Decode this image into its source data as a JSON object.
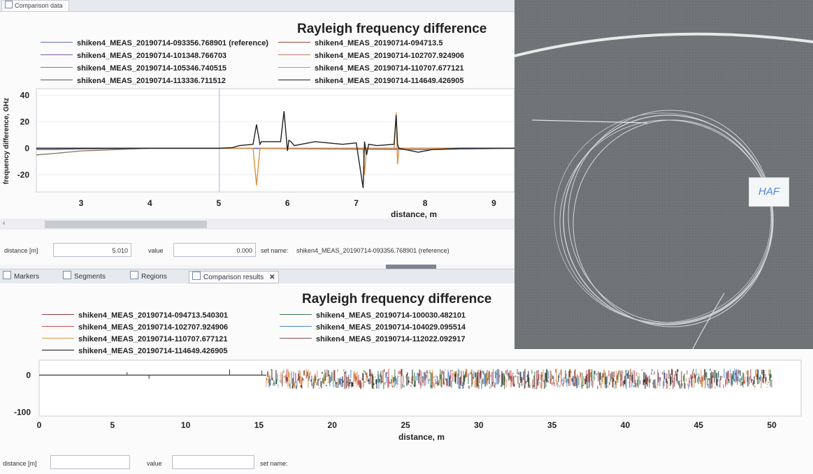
{
  "top_panel": {
    "tab_label": "Comparison data",
    "title": "Rayleigh frequency difference",
    "legend": [
      {
        "label": "shiken4_MEAS_20190714-093356.768901 (reference)",
        "color": "#5f6fb8"
      },
      {
        "label": "shiken4_MEAS_20190714-094713.5",
        "color": "#9a4a3a"
      },
      {
        "label": "shiken4_MEAS_20190714-101348.766703",
        "color": "#7c5aa8"
      },
      {
        "label": "shiken4_MEAS_20190714-102707.924906",
        "color": "#c8756a"
      },
      {
        "label": "shiken4_MEAS_20190714-105346.740515",
        "color": "#8a7a6a"
      },
      {
        "label": "shiken4_MEAS_20190714-110707.677121",
        "color": "#e09040"
      },
      {
        "label": "shiken4_MEAS_20190714-113336.711512",
        "color": "#555555"
      },
      {
        "label": "shiken4_MEAS_20190714-114649.426905",
        "color": "#222222"
      }
    ],
    "ylabel": "frequency difference, GHz",
    "xlabel": "distance, m",
    "form": {
      "distance_label": "distance [m]",
      "distance_value": "5.010",
      "value_label": "value",
      "value_value": "0.000",
      "setname_label": "set name:",
      "setname_value": "shiken4_MEAS_20190714-093356.768901 (reference)"
    }
  },
  "bottom_tabs": [
    {
      "label": "Markers",
      "icon": "markers-icon",
      "active": false
    },
    {
      "label": "Segments",
      "icon": "segments-icon",
      "active": false
    },
    {
      "label": "Regions",
      "icon": "regions-icon",
      "active": false
    },
    {
      "label": "Comparison results",
      "icon": "chart-icon",
      "active": true,
      "close": "✕"
    }
  ],
  "bottom_panel": {
    "title": "Rayleigh frequency difference",
    "legend": [
      {
        "label": "shiken4_MEAS_20190714-094713.540301",
        "color": "#8b3a3a"
      },
      {
        "label": "shiken4_MEAS_20190714-100030.482101",
        "color": "#3a7a4a"
      },
      {
        "label": "shiken4_MEAS_20190714-102707.924906",
        "color": "#c05050"
      },
      {
        "label": "shiken4_MEAS_20190714-104029.095514",
        "color": "#4a8ad0"
      },
      {
        "label": "shiken4_MEAS_20190714-110707.677121",
        "color": "#e09040"
      },
      {
        "label": "shiken4_MEAS_20190714-112022.092917",
        "color": "#8a4a4a"
      },
      {
        "label": "shiken4_MEAS_20190714-114649.426905",
        "color": "#111111"
      }
    ],
    "xlabel": "distance, m",
    "form": {
      "distance_label": "distance [m]",
      "value_label": "value",
      "setname_label": "set name:"
    }
  },
  "photo": {
    "tag_text": "HAF"
  },
  "chart_data": [
    {
      "type": "line",
      "title": "Rayleigh frequency difference",
      "xlabel": "distance, m",
      "ylabel": "frequency difference, GHz",
      "xlim": [
        2.35,
        9.3
      ],
      "ylim": [
        -33,
        45
      ],
      "xticks": [
        3,
        4,
        5,
        6,
        7,
        8,
        9
      ],
      "yticks": [
        40,
        20,
        0,
        -20
      ],
      "marker_x": 5.01,
      "series": [
        {
          "name": "shiken4_MEAS_20190714-114649.426905",
          "color": "#222222",
          "x": [
            2.35,
            3.0,
            4.0,
            5.0,
            5.2,
            5.3,
            5.5,
            5.55,
            5.6,
            5.62,
            5.9,
            5.95,
            6.0,
            6.02,
            6.05,
            6.1,
            6.3,
            6.4,
            6.8,
            7.0,
            7.1,
            7.12,
            7.15,
            7.18,
            7.3,
            7.55,
            7.58,
            7.6,
            7.62,
            7.9,
            8.1,
            8.5,
            9.3
          ],
          "y": [
            0,
            0,
            0,
            0,
            0.5,
            2,
            3,
            18,
            3,
            5,
            5,
            28,
            -2,
            6,
            5,
            2,
            4,
            5,
            3,
            4,
            -30,
            5,
            -5,
            3,
            2,
            3,
            25,
            3,
            0,
            -3,
            -1,
            0,
            0
          ]
        },
        {
          "name": "shiken4_MEAS_20190714-110707.677121",
          "color": "#e09040",
          "x": [
            2.35,
            5.0,
            5.5,
            5.55,
            5.6,
            6.0,
            7.1,
            7.12,
            7.15,
            7.55,
            7.58,
            7.6,
            7.62,
            9.3
          ],
          "y": [
            0,
            0,
            0,
            -28,
            0,
            0,
            0,
            -20,
            0,
            0,
            27,
            -12,
            0,
            0
          ]
        },
        {
          "name": "shiken4_MEAS_20190714-093356.768901 (reference)",
          "color": "#5f6fb8",
          "x": [
            2.35,
            2.6,
            3.0,
            4.0,
            5.0,
            8.0,
            9.3
          ],
          "y": [
            -1,
            -1,
            -0.5,
            0,
            0,
            -1,
            0
          ]
        },
        {
          "name": "shiken4_MEAS_20190714-105346.740515",
          "color": "#8a7a6a",
          "x": [
            2.35,
            2.6,
            3.0,
            3.5,
            4.0,
            5.0,
            9.3
          ],
          "y": [
            -5,
            -4,
            -2,
            -1,
            0,
            0,
            0
          ]
        }
      ]
    },
    {
      "type": "line",
      "title": "Rayleigh frequency difference",
      "xlabel": "distance, m",
      "xlim": [
        0,
        52
      ],
      "ylim": [
        -110,
        40
      ],
      "xticks": [
        0,
        5,
        10,
        15,
        20,
        25,
        30,
        35,
        40,
        45,
        50
      ],
      "yticks": [
        0,
        -100
      ],
      "noise_start": 15.5,
      "noise_end": 50,
      "spikes": [
        [
          6,
          8
        ],
        [
          7.5,
          -10
        ],
        [
          13,
          15
        ],
        [
          15.2,
          12
        ]
      ]
    }
  ]
}
